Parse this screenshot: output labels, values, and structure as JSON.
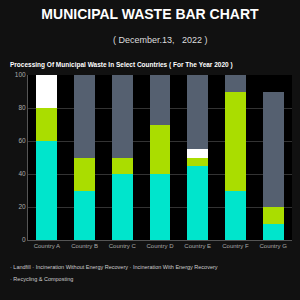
{
  "chart_data": {
    "type": "bar",
    "title": "MUNICIPAL WASTE BAR CHART",
    "subtitle": "( December.13,   2022 )",
    "annotations": [
      "Processing Of Municipal Waste In Select Countries ( For The Year 2020 )",
      "· Landfill · Incineration Without Energy Recovery · Incineration With Energy Recovery",
      "· Recycling & Composting"
    ],
    "categories": [
      "Country A",
      "Country B",
      "Country C",
      "Country D",
      "Country E",
      "Country F",
      "Country G"
    ],
    "series": [
      {
        "color": "#00E5CC",
        "values": [
          60,
          30,
          40,
          40,
          45,
          30,
          10
        ]
      },
      {
        "color": "#AADD00",
        "values": [
          20,
          20,
          10,
          30,
          5,
          60,
          10
        ]
      },
      {
        "color": "#FFFFFF",
        "values": [
          20,
          0,
          0,
          0,
          5,
          0,
          0
        ]
      },
      {
        "color": "#556070",
        "values": [
          0,
          50,
          50,
          30,
          45,
          10,
          70
        ]
      }
    ],
    "stacked": true,
    "ylim": [
      0,
      100
    ],
    "yticks": [
      0,
      20,
      40,
      60,
      80,
      100
    ],
    "grid": true
  }
}
